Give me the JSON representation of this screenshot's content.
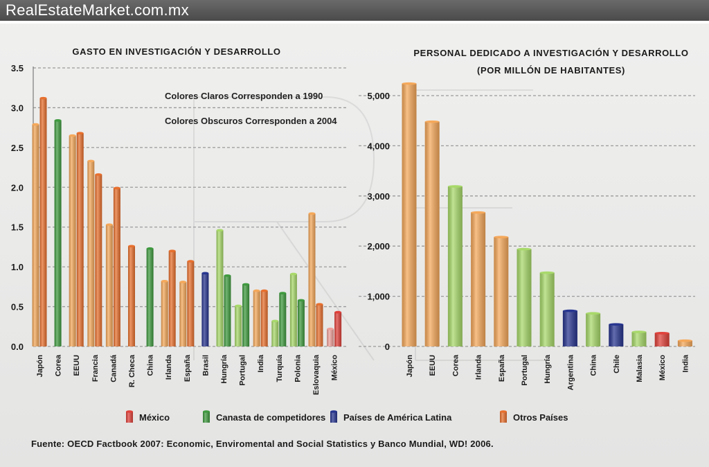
{
  "site": {
    "title": "RealEstateMarket.com.mx"
  },
  "colors": {
    "Mexico": "#e0413a",
    "Competitors": "#3f9a3f",
    "LatAm": "#27358f",
    "Others": "#e8702e",
    "Mexico_light": "#f0a09a",
    "Competitors_light": "#a8d96a",
    "Others_light": "#f5a85a"
  },
  "chart_data": [
    {
      "type": "bar",
      "title": "GASTO EN INVESTIGACIÓN Y DESARROLLO",
      "ylim": [
        0,
        3.5
      ],
      "yticks": [
        "0.0",
        "0.5",
        "1.0",
        "1.5",
        "2.0",
        "2.5",
        "3.0",
        "3.5"
      ],
      "grid": true,
      "notes": [
        "Colores Claros Corresponden a 1990",
        "Colores Obscuros Corresponden a 2004"
      ],
      "categories": [
        "Japón",
        "Corea",
        "EEUU",
        "Francia",
        "Canadá",
        "R. Checa",
        "China",
        "Irlanda",
        "España",
        "Brasil",
        "Hungría",
        "Portugal",
        "India",
        "Turquía",
        "Polonia",
        "Eslovaquia",
        "México"
      ],
      "groups": [
        "Others",
        "Competitors",
        "Others",
        "Others",
        "Others",
        "Others",
        "Competitors",
        "Others",
        "Others",
        "LatAm",
        "Competitors",
        "Competitors",
        "Others",
        "Competitors",
        "Competitors",
        "Others",
        "Mexico"
      ],
      "series": [
        {
          "name": "1990",
          "values": [
            2.79,
            null,
            2.65,
            2.33,
            1.53,
            null,
            null,
            0.82,
            0.81,
            null,
            1.46,
            0.51,
            0.7,
            0.32,
            0.91,
            1.67,
            0.22
          ]
        },
        {
          "name": "2004",
          "values": [
            3.12,
            2.84,
            2.68,
            2.16,
            1.99,
            1.26,
            1.23,
            1.2,
            1.07,
            0.92,
            0.89,
            0.78,
            0.7,
            0.67,
            0.58,
            0.53,
            0.43
          ]
        }
      ]
    },
    {
      "type": "bar",
      "title": "PERSONAL DEDICADO A INVESTIGACIÓN Y DESARROLLO",
      "subtitle": "(POR MILLÓN DE HABITANTES)",
      "ylim": [
        0,
        5000
      ],
      "yticks": [
        "0",
        "1,000",
        "2,000",
        "3,000",
        "4,000",
        "5,000"
      ],
      "grid": true,
      "categories": [
        "Japón",
        "EEUU",
        "Corea",
        "Irlanda",
        "España",
        "Portugal",
        "Hungría",
        "Argentina",
        "China",
        "Chile",
        "Malasia",
        "México",
        "India"
      ],
      "groups": [
        "Others_light",
        "Others_light",
        "Competitors_light",
        "Others_light",
        "Others_light",
        "Competitors_light",
        "Competitors_light",
        "LatAm",
        "Competitors_light",
        "LatAm",
        "Competitors_light",
        "Mexico",
        "Others_light"
      ],
      "values": [
        5240,
        4480,
        3190,
        2670,
        2180,
        1940,
        1470,
        710,
        660,
        440,
        290,
        265,
        115
      ]
    }
  ],
  "legend": [
    {
      "key": "Mexico",
      "label": "México"
    },
    {
      "key": "Competitors",
      "label": "Canasta de competidores"
    },
    {
      "key": "LatAm",
      "label": "Países de América Latina"
    },
    {
      "key": "Others",
      "label": "Otros Países"
    }
  ],
  "source": "Fuente: OECD Factbook 2007: Economic, Enviromental and Social Statistics y Banco Mundial, WD! 2006."
}
